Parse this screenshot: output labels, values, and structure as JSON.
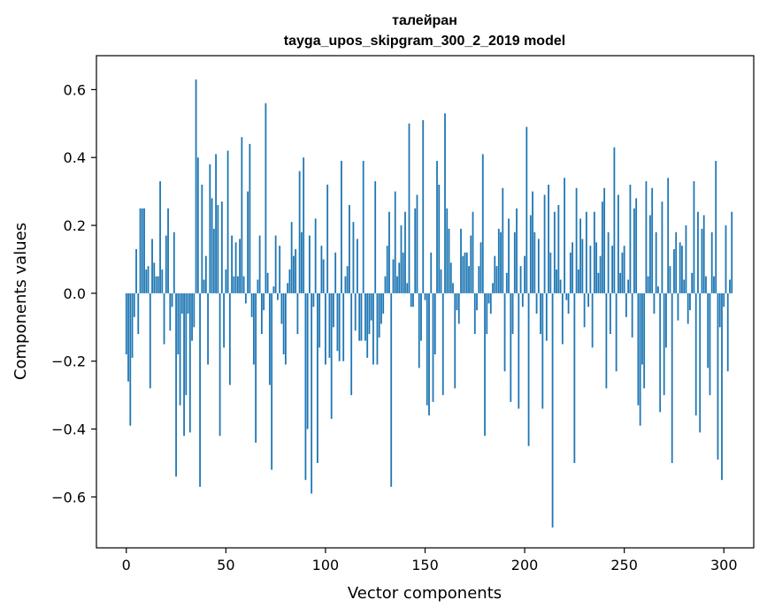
{
  "chart_data": {
    "type": "bar",
    "title_line1": "талейран",
    "title_line2": "tayga_upos_skipgram_300_2_2019 model",
    "xlabel": "Vector components",
    "ylabel": "Components values",
    "xlim": [
      -15,
      315
    ],
    "ylim": [
      -0.75,
      0.7
    ],
    "xticks": [
      0,
      50,
      100,
      150,
      200,
      250,
      300
    ],
    "xtick_labels": [
      "0",
      "50",
      "100",
      "150",
      "200",
      "250",
      "300"
    ],
    "yticks": [
      -0.6,
      -0.4,
      -0.2,
      0.0,
      0.2,
      0.4,
      0.6
    ],
    "ytick_labels": [
      "−0.6",
      "−0.4",
      "−0.2",
      "0.0",
      "0.2",
      "0.4",
      "0.6"
    ],
    "bar_color": "#1f77b4",
    "values": [
      -0.18,
      -0.26,
      -0.39,
      -0.19,
      -0.07,
      0.13,
      -0.12,
      0.25,
      0.25,
      0.25,
      0.07,
      0.08,
      -0.28,
      0.16,
      0.09,
      0.05,
      0.05,
      0.33,
      0.07,
      -0.15,
      0.17,
      0.25,
      -0.11,
      -0.04,
      0.18,
      -0.54,
      -0.18,
      -0.33,
      -0.06,
      -0.42,
      -0.3,
      -0.06,
      -0.41,
      -0.14,
      -0.1,
      0.63,
      0.4,
      -0.57,
      0.32,
      0.04,
      0.11,
      -0.21,
      0.38,
      0.28,
      0.19,
      0.41,
      0.26,
      -0.42,
      0.27,
      -0.16,
      0.07,
      0.42,
      -0.27,
      0.17,
      0.05,
      0.15,
      0.05,
      0.16,
      0.46,
      0.05,
      -0.03,
      0.3,
      0.44,
      -0.07,
      -0.21,
      -0.44,
      0.04,
      0.17,
      -0.12,
      -0.05,
      0.56,
      0.06,
      -0.27,
      -0.52,
      0.02,
      0.17,
      -0.02,
      0.14,
      -0.09,
      -0.18,
      -0.21,
      0.03,
      0.07,
      0.21,
      0.11,
      0.13,
      -0.12,
      0.36,
      0.18,
      0.4,
      -0.55,
      -0.4,
      0.17,
      -0.59,
      -0.04,
      0.22,
      -0.5,
      -0.16,
      0.14,
      0.1,
      -0.21,
      0.32,
      -0.19,
      -0.37,
      -0.1,
      0.12,
      -0.17,
      -0.2,
      0.39,
      -0.2,
      0.05,
      0.08,
      0.26,
      -0.3,
      0.21,
      -0.11,
      0.16,
      -0.14,
      -0.14,
      0.39,
      -0.14,
      -0.19,
      -0.12,
      -0.08,
      -0.21,
      0.33,
      -0.21,
      -0.13,
      -0.09,
      -0.06,
      0.05,
      0.14,
      0.24,
      -0.57,
      0.1,
      0.3,
      0.05,
      0.09,
      0.2,
      0.12,
      0.24,
      0.03,
      0.5,
      -0.04,
      -0.04,
      0.25,
      0.29,
      -0.22,
      -0.14,
      0.51,
      -0.02,
      -0.33,
      -0.36,
      0.12,
      -0.32,
      -0.18,
      0.39,
      0.32,
      0.07,
      -0.3,
      0.53,
      0.25,
      0.19,
      0.09,
      0.03,
      -0.28,
      -0.05,
      -0.09,
      0.19,
      0.11,
      0.12,
      0.12,
      0.08,
      0.17,
      0.24,
      -0.12,
      -0.05,
      0.08,
      0.15,
      0.41,
      -0.42,
      -0.12,
      -0.03,
      -0.06,
      0.03,
      0.11,
      0.08,
      0.19,
      0.18,
      0.31,
      -0.23,
      0.06,
      0.22,
      -0.32,
      -0.12,
      0.18,
      0.25,
      -0.34,
      0.08,
      -0.04,
      0.11,
      0.49,
      -0.45,
      0.23,
      0.3,
      0.18,
      -0.06,
      0.16,
      -0.12,
      -0.34,
      0.29,
      -0.14,
      0.32,
      0.12,
      -0.69,
      0.24,
      0.07,
      0.26,
      0.04,
      -0.15,
      0.34,
      -0.02,
      -0.06,
      0.12,
      0.15,
      -0.5,
      0.31,
      0.07,
      0.22,
      0.16,
      -0.1,
      0.24,
      -0.04,
      0.14,
      -0.16,
      0.24,
      0.15,
      0.06,
      0.11,
      0.27,
      0.31,
      -0.28,
      0.18,
      -0.12,
      0.14,
      0.43,
      -0.23,
      0.29,
      0.06,
      0.12,
      0.14,
      -0.07,
      0.04,
      0.32,
      -0.13,
      0.25,
      0.28,
      -0.33,
      -0.39,
      -0.21,
      -0.28,
      0.33,
      0.05,
      0.23,
      0.31,
      -0.06,
      0.18,
      0.02,
      -0.35,
      0.27,
      -0.3,
      -0.16,
      0.34,
      0.08,
      -0.5,
      0.13,
      0.18,
      -0.08,
      0.15,
      0.14,
      0.04,
      0.2,
      -0.09,
      -0.05,
      0.06,
      0.33,
      -0.36,
      0.24,
      -0.41,
      0.19,
      0.23,
      0.05,
      -0.22,
      -0.3,
      0.18,
      0.05,
      0.39,
      -0.49,
      -0.1,
      -0.55,
      -0.04,
      0.2,
      -0.23,
      0.04,
      0.24
    ]
  }
}
